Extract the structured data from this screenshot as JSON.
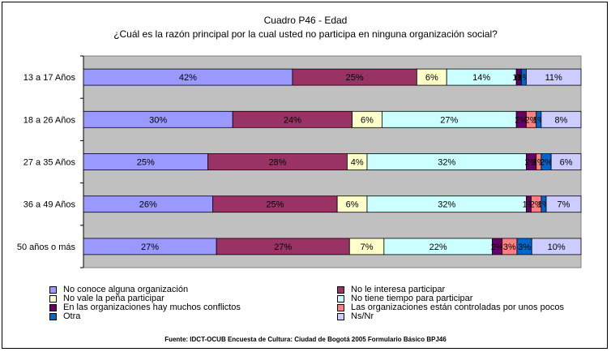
{
  "chart_data": {
    "type": "bar",
    "orientation": "horizontal",
    "stacked": "percent",
    "title": "Cuadro P46 - Edad",
    "subtitle": "¿Cuál es la razón principal por la cual usted no participa en ninguna organización social?",
    "categories": [
      "13 a 17 Años",
      "18 a 26 Años",
      "27 a 35 Años",
      "36 a 49 Años",
      "50 años o más"
    ],
    "series": [
      {
        "name": "No conoce alguna organización",
        "color": "#9999ff",
        "values": [
          42,
          30,
          25,
          26,
          27
        ]
      },
      {
        "name": "No le interesa participar",
        "color": "#993366",
        "values": [
          25,
          24,
          28,
          25,
          27
        ]
      },
      {
        "name": "No vale la peña participar",
        "color": "#ffffcc",
        "values": [
          6,
          6,
          4,
          6,
          7
        ]
      },
      {
        "name": "No tiene tiempo para participar",
        "color": "#ccffff",
        "values": [
          14,
          27,
          32,
          32,
          22
        ]
      },
      {
        "name": "En las organizaciones hay muchos conflictos",
        "color": "#660066",
        "values": [
          1,
          2,
          2,
          1,
          2
        ]
      },
      {
        "name": "Las organizaciones están controladas por unos pocos",
        "color": "#ff8080",
        "values": [
          0,
          2,
          1,
          2,
          3
        ]
      },
      {
        "name": "Otra",
        "color": "#0066cc",
        "values": [
          1,
          1,
          2,
          1,
          3
        ]
      },
      {
        "name": "Ns/Nr",
        "color": "#ccccff",
        "values": [
          11,
          8,
          6,
          7,
          10
        ]
      }
    ],
    "data_labels": [
      [
        "42%",
        "25%",
        "6%",
        "14%",
        "1%",
        "0%",
        "1%",
        "11%"
      ],
      [
        "30%",
        "24%",
        "6%",
        "27%",
        "2%",
        "2%",
        "1%",
        "8%"
      ],
      [
        "25%",
        "28%",
        "4%",
        "32%",
        "2%",
        "1%",
        "2%",
        "6%"
      ],
      [
        "26%",
        "25%",
        "6%",
        "32%",
        "1%",
        "2%",
        "1%",
        "7%"
      ],
      [
        "27%",
        "27%",
        "7%",
        "22%",
        "2%",
        "3%",
        "3%",
        "10%"
      ]
    ],
    "xlim": [
      0,
      100
    ],
    "grid": false,
    "legend_position": "bottom",
    "plot_background": "#c0c0c0"
  },
  "source": "Fuente: IDCT-OCUB Encuesta de Cultura: Ciudad de Bogotá 2005 Formulario Básico BPJ46"
}
